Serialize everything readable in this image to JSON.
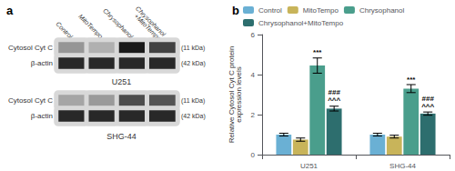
{
  "chart_data": [
    {
      "type": "heatmap",
      "title": "U251",
      "annotations": [
        "a"
      ],
      "categories": [
        "Control",
        "MitoTempo",
        "Chrysophanol",
        "Chrysophanol\n+MitoTempo"
      ],
      "y_categories": [
        "Cytosol Cyt C",
        "β-actin"
      ],
      "y2_categories": [
        "(11 kDa)",
        "(42 kDa)"
      ],
      "cells": [
        [
          0.32,
          0.2,
          0.88,
          0.7
        ],
        [
          0.82,
          0.82,
          0.82,
          0.82
        ]
      ],
      "zlim": [
        0,
        1
      ]
    },
    {
      "type": "heatmap",
      "title": "SHG-44",
      "tick_labels": "y",
      "categories": [
        "Control",
        "MitoTempo",
        "Chrysophanol",
        "Chrysophanol\n+MitoTempo"
      ],
      "y_categories": [
        "Cytosol Cyt C",
        "β-actin"
      ],
      "y2_categories": [
        "(11 kDa)",
        "(42 kDa)"
      ],
      "cells": [
        [
          0.25,
          0.3,
          0.65,
          0.62
        ],
        [
          0.82,
          0.82,
          0.82,
          0.82
        ]
      ],
      "zlim": [
        0,
        1
      ]
    },
    {
      "type": "bar",
      "annotations": [
        "b"
      ],
      "categories": [
        "U251",
        "SHG-44"
      ],
      "series": [
        {
          "name": "Control",
          "color": "#6ab0d4",
          "values": [
            1.0,
            1.0
          ],
          "errors": [
            0.07,
            0.07
          ]
        },
        {
          "name": "MitoTempo",
          "color": "#c8b45a",
          "values": [
            0.75,
            0.9
          ],
          "errors": [
            0.08,
            0.07
          ]
        },
        {
          "name": "Chrysophanol",
          "color": "#4a9e8c",
          "values": [
            4.45,
            3.3
          ],
          "errors": [
            0.38,
            0.2
          ],
          "annotations": [
            [
              "***"
            ],
            [
              "***"
            ]
          ]
        },
        {
          "name": "Chrysophanol+MitoTempo",
          "color": "#2d6e6e",
          "values": [
            2.3,
            2.05
          ],
          "errors": [
            0.12,
            0.08
          ],
          "annotations": [
            [
              "###",
              "^^^"
            ],
            [
              "###",
              "^^^"
            ]
          ]
        }
      ],
      "ylabel": "Relative Cytosol Cyt C protein\nexpression levels",
      "ylim": [
        0,
        6
      ],
      "yticks": [
        0,
        2,
        4,
        6
      ],
      "grid": false,
      "legend": "upper left"
    }
  ]
}
